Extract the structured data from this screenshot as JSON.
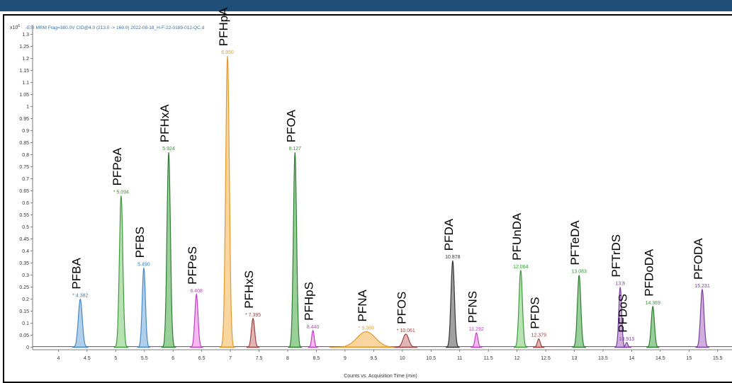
{
  "chart_data": {
    "type": "line",
    "header": "-ESI MRM Frag=380.0V CID@4.0 (213.0 -> 169.0) 2022-08-18_H-F-22-0189-012-QC.d",
    "y_multiplier": "x10",
    "y_exponent": "6",
    "xlabel": "Counts vs. Acquisition Time (min)",
    "xlim": [
      3.55,
      15.75
    ],
    "ylim": [
      -0.01,
      1.34
    ],
    "x_ticks": [
      "4",
      "4.5",
      "5",
      "5.5",
      "6",
      "6.5",
      "7",
      "7.5",
      "8",
      "8.5",
      "9",
      "9.5",
      "10",
      "10.5",
      "11",
      "11.5",
      "12",
      "12.5",
      "13",
      "13.5",
      "14",
      "14.5",
      "15",
      "15.5"
    ],
    "y_ticks": [
      "0",
      "0.05",
      "0.1",
      "0.15",
      "0.2",
      "0.25",
      "0.3",
      "0.35",
      "0.4",
      "0.45",
      "0.5",
      "0.55",
      "0.6",
      "0.65",
      "0.7",
      "0.75",
      "0.8",
      "0.85",
      "0.9",
      "0.95",
      "1",
      "1.05",
      "1.1",
      "1.15",
      "1.2",
      "1.25",
      "1.3"
    ],
    "peaks": [
      {
        "compound": "PFBA",
        "rt": "* 4.382",
        "x": 4.382,
        "height": 0.2,
        "width": 0.035,
        "fill": "#9cc3e6",
        "stroke": "#4a89c4",
        "rt_color": "#3a7ec8"
      },
      {
        "compound": "PFPeA",
        "rt": "* 5.094",
        "x": 5.094,
        "height": 0.63,
        "width": 0.03,
        "fill": "#a8dba0",
        "stroke": "#3d9a3d",
        "rt_color": "#2f9a2f"
      },
      {
        "compound": "PFBS",
        "rt": "5.490",
        "x": 5.49,
        "height": 0.33,
        "width": 0.028,
        "fill": "#9cc3e6",
        "stroke": "#4a89c4",
        "rt_color": "#3a7ec8"
      },
      {
        "compound": "PFHxA",
        "rt": "5.924",
        "x": 5.924,
        "height": 0.81,
        "width": 0.03,
        "fill": "#7fc47f",
        "stroke": "#2e7d32",
        "rt_color": "#2f9a2f"
      },
      {
        "compound": "PFPeS",
        "rt": "6.408",
        "x": 6.408,
        "height": 0.22,
        "width": 0.028,
        "fill": "#f3a6ee",
        "stroke": "#c040c0",
        "rt_color": "#c040c0"
      },
      {
        "compound": "PFHpA",
        "rt": "6.950",
        "x": 6.95,
        "height": 1.21,
        "width": 0.032,
        "fill": "#f8cc88",
        "stroke": "#e39a2b",
        "rt_color": "#e39a2b"
      },
      {
        "compound": "PFHxS",
        "rt": "* 7.395",
        "x": 7.395,
        "height": 0.12,
        "width": 0.028,
        "fill": "#d9a2a2",
        "stroke": "#a04040",
        "rt_color": "#a04040"
      },
      {
        "compound": "PFOA",
        "rt": "8.127",
        "x": 8.127,
        "height": 0.81,
        "width": 0.028,
        "fill": "#7fc47f",
        "stroke": "#2e7d32",
        "rt_color": "#2f9a2f"
      },
      {
        "compound": "PFHpS",
        "rt": "8.440",
        "x": 8.44,
        "height": 0.07,
        "width": 0.022,
        "fill": "#f3a6ee",
        "stroke": "#c040c0",
        "rt_color": "#c040c0"
      },
      {
        "compound": "PFNA",
        "rt": "* 9.369",
        "x": 9.369,
        "height": 0.065,
        "width": 0.16,
        "fill": "#f8cc88",
        "stroke": "#e39a2b",
        "rt_color": "#e39a2b"
      },
      {
        "compound": "PFOS",
        "rt": "* 10.061",
        "x": 10.061,
        "height": 0.055,
        "width": 0.05,
        "fill": "#d9a2a2",
        "stroke": "#a04040",
        "rt_color": "#a04040"
      },
      {
        "compound": "PFDA",
        "rt": "10.878",
        "x": 10.878,
        "height": 0.36,
        "width": 0.03,
        "fill": "#8a8a8a",
        "stroke": "#333333",
        "rt_color": "#333333"
      },
      {
        "compound": "PFNS",
        "rt": "11.292",
        "x": 11.292,
        "height": 0.06,
        "width": 0.025,
        "fill": "#f3a6ee",
        "stroke": "#c040c0",
        "rt_color": "#c040c0"
      },
      {
        "compound": "PFUnDA",
        "rt": "12.064",
        "x": 12.064,
        "height": 0.32,
        "width": 0.03,
        "fill": "#a8dba0",
        "stroke": "#3d9a3d",
        "rt_color": "#2f9a2f"
      },
      {
        "compound": "PFDS",
        "rt": "12.379",
        "x": 12.379,
        "height": 0.035,
        "width": 0.025,
        "fill": "#d9a2a2",
        "stroke": "#a04040",
        "rt_color": "#a04040"
      },
      {
        "compound": "PFTeDA",
        "rt": "13.083",
        "x": 13.083,
        "height": 0.3,
        "width": 0.03,
        "fill": "#7fc47f",
        "stroke": "#2e7d32",
        "rt_color": "#2f9a2f"
      },
      {
        "compound": "PFTrDS",
        "rt": "13.8",
        "x": 13.8,
        "height": 0.25,
        "width": 0.025,
        "fill": "#c49ad6",
        "stroke": "#7a3e9d",
        "rt_color": "#7a3e9d"
      },
      {
        "compound": "PFDoS",
        "rt": "13.913",
        "x": 13.913,
        "height": 0.02,
        "width": 0.02,
        "fill": "#c49ad6",
        "stroke": "#7a3e9d",
        "rt_color": "#7a3e9d"
      },
      {
        "compound": "PFDoDA",
        "rt": "14.369",
        "x": 14.369,
        "height": 0.17,
        "width": 0.028,
        "fill": "#7fc47f",
        "stroke": "#2e7d32",
        "rt_color": "#2f9a2f"
      },
      {
        "compound": "PFODA",
        "rt": "15.231",
        "x": 15.231,
        "height": 0.24,
        "width": 0.03,
        "fill": "#c49ad6",
        "stroke": "#7a3e9d",
        "rt_color": "#7a3e9d"
      }
    ]
  }
}
